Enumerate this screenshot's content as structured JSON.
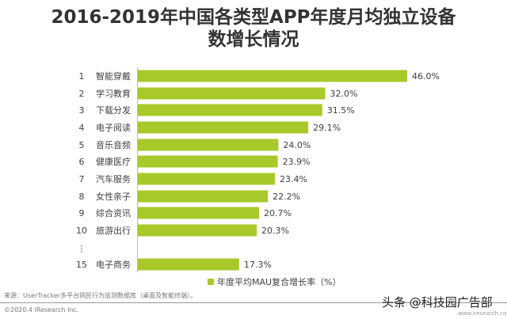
{
  "title_line1": "2016-2019年中国各类型APP年度月均独立设备",
  "title_line2": "数增长情况",
  "chart_data": {
    "type": "bar",
    "orientation": "horizontal",
    "ranks": [
      "1",
      "2",
      "3",
      "4",
      "5",
      "6",
      "7",
      "8",
      "9",
      "10",
      "15"
    ],
    "categories": [
      "智能穿戴",
      "学习教育",
      "下载分发",
      "电子阅读",
      "音乐音频",
      "健康医疗",
      "汽车服务",
      "女性亲子",
      "综合资讯",
      "旅游出行",
      "电子商务"
    ],
    "values": [
      46.0,
      32.0,
      31.5,
      29.1,
      24.0,
      23.9,
      23.4,
      22.2,
      20.7,
      20.3,
      17.3
    ],
    "data_labels": [
      "46.0%",
      "32.0%",
      "31.5%",
      "29.1%",
      "24.0%",
      "23.9%",
      "23.4%",
      "22.2%",
      "20.7%",
      "20.3%",
      "17.3%"
    ],
    "gap_marker": "⋮",
    "series": [
      {
        "name": "年度平均MAU复合增长率（%）",
        "color": "#a8c92a"
      }
    ],
    "legend_position": "bottom",
    "grid": false
  },
  "footer": {
    "source": "来源：UserTracker多平台网民行为监测数据库（桌面及智能终端）。",
    "copyright": "©2020.4 iResearch Inc.",
    "watermark": "头条 @科技园广告部",
    "site": "www.iresearch.com.cn"
  }
}
